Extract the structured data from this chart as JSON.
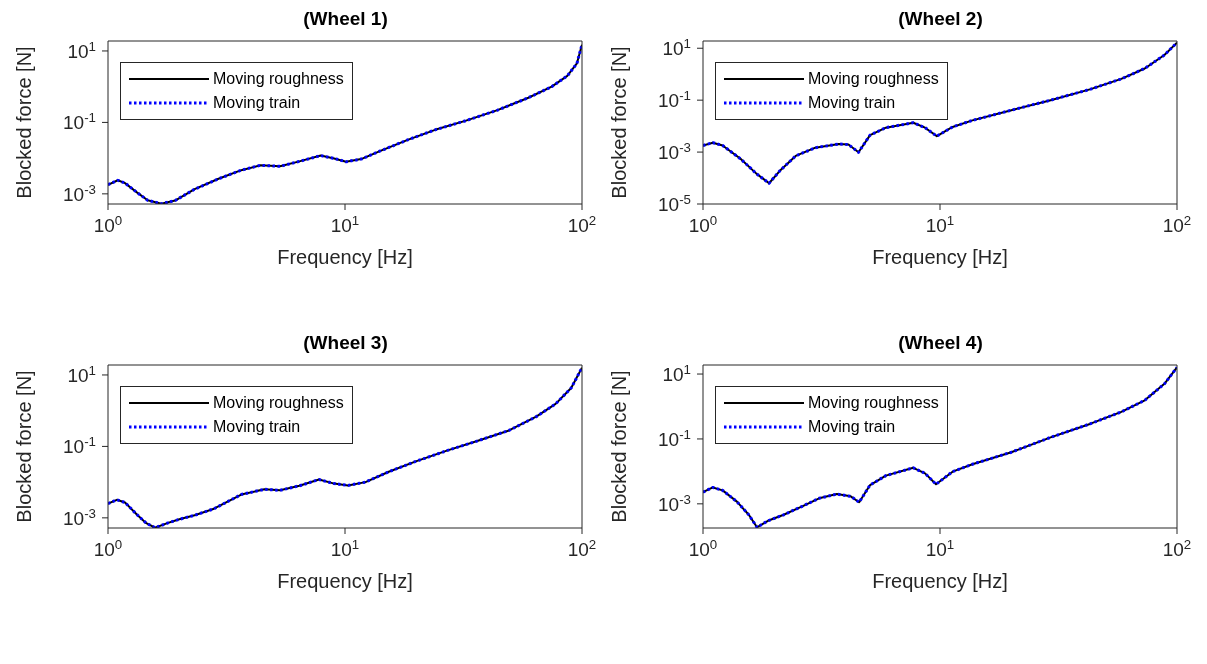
{
  "chart_data": [
    {
      "type": "line",
      "title": "(Wheel 1)",
      "xlabel": "Frequency [Hz]",
      "ylabel": "Blocked force [N]",
      "log": "xy",
      "legend": "top left",
      "grid": false,
      "xlim": [
        1,
        100
      ],
      "ylim": [
        0.00052,
        19
      ],
      "xticks": [
        {
          "value": 1,
          "label": "10$^{0}$"
        },
        {
          "value": 10,
          "label": "10$^{1}$"
        },
        {
          "value": 100,
          "label": "10$^{2}$"
        }
      ],
      "yticks": [
        {
          "value": 0.001,
          "label": "10$^{-3}$"
        },
        {
          "value": 0.1,
          "label": "10$^{-1}$"
        },
        {
          "value": 10,
          "label": "10$^{1}$"
        }
      ],
      "x": [
        1,
        1.1,
        1.18,
        1.32,
        1.47,
        1.68,
        1.92,
        2.32,
        2.91,
        3.65,
        4.4,
        5.32,
        6.42,
        7.9,
        9.0,
        10.1,
        11.7,
        14.2,
        18.5,
        24,
        32.4,
        44,
        59.4,
        74.5,
        86.7,
        95.2,
        100
      ],
      "series": [
        {
          "name": "Moving roughness",
          "color": "#000000",
          "line_style": "solid",
          "values": [
            0.0018,
            0.0024,
            0.002,
            0.00112,
            0.00066,
            0.00053,
            0.00065,
            0.00135,
            0.0026,
            0.0046,
            0.0063,
            0.0059,
            0.0081,
            0.0118,
            0.0098,
            0.0079,
            0.0094,
            0.0162,
            0.033,
            0.062,
            0.112,
            0.22,
            0.49,
            1.0,
            2.0,
            4.5,
            15
          ]
        },
        {
          "name": "Moving train",
          "color": "#0000ff",
          "line_style": "dotted",
          "values": [
            0.0018,
            0.0024,
            0.002,
            0.00112,
            0.00066,
            0.00053,
            0.00065,
            0.00135,
            0.0026,
            0.0046,
            0.0063,
            0.0059,
            0.0081,
            0.0118,
            0.0098,
            0.0079,
            0.0094,
            0.0162,
            0.033,
            0.062,
            0.112,
            0.22,
            0.49,
            1.0,
            2.0,
            4.5,
            15
          ]
        }
      ]
    },
    {
      "type": "line",
      "title": "(Wheel 2)",
      "xlabel": "Frequency [Hz]",
      "ylabel": "Blocked force [N]",
      "log": "xy",
      "legend": "top left",
      "grid": false,
      "xlim": [
        1,
        100
      ],
      "ylim": [
        1e-05,
        19
      ],
      "xticks": [
        {
          "value": 1,
          "label": "10$^{0}$"
        },
        {
          "value": 10,
          "label": "10$^{1}$"
        },
        {
          "value": 100,
          "label": "10$^{2}$"
        }
      ],
      "yticks": [
        {
          "value": 1e-05,
          "label": "10$^{-5}$"
        },
        {
          "value": 0.001,
          "label": "10$^{-3}$"
        },
        {
          "value": 0.1,
          "label": "10$^{-1}$"
        },
        {
          "value": 10,
          "label": "10$^{1}$"
        }
      ],
      "x": [
        1,
        1.1,
        1.21,
        1.44,
        1.68,
        1.9,
        2.11,
        2.46,
        2.98,
        3.74,
        4.11,
        4.53,
        5.07,
        5.91,
        7.71,
        8.65,
        9.7,
        11.3,
        13.7,
        20,
        29.3,
        42.9,
        58.2,
        73.1,
        88.5,
        100
      ],
      "series": [
        {
          "name": "Moving roughness",
          "color": "#000000",
          "line_style": "solid",
          "values": [
            0.0018,
            0.0023,
            0.0018,
            0.00055,
            0.000148,
            6.3e-05,
            0.00019,
            0.00071,
            0.00148,
            0.00204,
            0.00195,
            0.00098,
            0.0045,
            0.0087,
            0.0135,
            0.0087,
            0.0041,
            0.0093,
            0.0166,
            0.041,
            0.1,
            0.26,
            0.66,
            1.66,
            5.5,
            16.5
          ]
        },
        {
          "name": "Moving train",
          "color": "#0000ff",
          "line_style": "dotted",
          "values": [
            0.0018,
            0.0023,
            0.0018,
            0.00055,
            0.000148,
            6.3e-05,
            0.00019,
            0.00071,
            0.00148,
            0.00204,
            0.00195,
            0.00098,
            0.0045,
            0.0087,
            0.0135,
            0.0087,
            0.0041,
            0.0093,
            0.0166,
            0.041,
            0.1,
            0.26,
            0.66,
            1.66,
            5.5,
            16.5
          ]
        }
      ]
    },
    {
      "type": "line",
      "title": "(Wheel 3)",
      "xlabel": "Frequency [Hz]",
      "ylabel": "Blocked force [N]",
      "log": "xy",
      "legend": "top left",
      "grid": false,
      "xlim": [
        1,
        100
      ],
      "ylim": [
        0.00052,
        19
      ],
      "xticks": [
        {
          "value": 1,
          "label": "10$^{0}$"
        },
        {
          "value": 10,
          "label": "10$^{1}$"
        },
        {
          "value": 100,
          "label": "10$^{2}$"
        }
      ],
      "yticks": [
        {
          "value": 0.001,
          "label": "10$^{-3}$"
        },
        {
          "value": 0.1,
          "label": "10$^{-1}$"
        },
        {
          "value": 10,
          "label": "10$^{1}$"
        }
      ],
      "x": [
        1,
        1.09,
        1.18,
        1.32,
        1.45,
        1.58,
        1.78,
        2.0,
        2.32,
        2.8,
        3.65,
        4.57,
        5.32,
        6.42,
        7.77,
        9.0,
        10.3,
        12.2,
        15.3,
        19.9,
        26.9,
        36.4,
        49.2,
        64.1,
        77.4,
        90,
        100
      ],
      "series": [
        {
          "name": "Moving roughness",
          "color": "#000000",
          "line_style": "solid",
          "values": [
            0.0025,
            0.0032,
            0.0027,
            0.00126,
            0.00071,
            0.00053,
            0.00071,
            0.00091,
            0.00118,
            0.0018,
            0.0045,
            0.0063,
            0.0059,
            0.0079,
            0.0118,
            0.0091,
            0.0081,
            0.01,
            0.0195,
            0.038,
            0.076,
            0.144,
            0.28,
            0.68,
            1.55,
            4.3,
            16
          ]
        },
        {
          "name": "Moving train",
          "color": "#0000ff",
          "line_style": "dotted",
          "values": [
            0.0025,
            0.0032,
            0.0027,
            0.00126,
            0.00071,
            0.00053,
            0.00071,
            0.00091,
            0.00118,
            0.0018,
            0.0045,
            0.0063,
            0.0059,
            0.0079,
            0.0118,
            0.0091,
            0.0081,
            0.01,
            0.0195,
            0.038,
            0.076,
            0.144,
            0.28,
            0.68,
            1.55,
            4.3,
            16
          ]
        }
      ]
    },
    {
      "type": "line",
      "title": "(Wheel 4)",
      "xlabel": "Frequency [Hz]",
      "ylabel": "Blocked force [N]",
      "log": "xy",
      "legend": "top left",
      "grid": false,
      "xlim": [
        1,
        100
      ],
      "ylim": [
        0.00018,
        19
      ],
      "xticks": [
        {
          "value": 1,
          "label": "10$^{0}$"
        },
        {
          "value": 10,
          "label": "10$^{1}$"
        },
        {
          "value": 100,
          "label": "10$^{2}$"
        }
      ],
      "yticks": [
        {
          "value": 0.001,
          "label": "10$^{-3}$"
        },
        {
          "value": 0.1,
          "label": "10$^{-1}$"
        },
        {
          "value": 10,
          "label": "10$^{1}$"
        }
      ],
      "x": [
        1,
        1.1,
        1.21,
        1.39,
        1.56,
        1.69,
        1.88,
        2.19,
        2.65,
        3.09,
        3.67,
        4.2,
        4.56,
        5.07,
        5.91,
        7.71,
        8.65,
        9.62,
        11.3,
        13.7,
        20,
        29.3,
        42.9,
        58.2,
        73.1,
        88.5,
        100
      ],
      "series": [
        {
          "name": "Moving roughness",
          "color": "#000000",
          "line_style": "solid",
          "values": [
            0.0023,
            0.0032,
            0.0026,
            0.00117,
            0.00046,
            0.00019,
            0.0003,
            0.00046,
            0.00087,
            0.00148,
            0.002,
            0.0017,
            0.00112,
            0.0038,
            0.0074,
            0.0129,
            0.0087,
            0.004,
            0.0098,
            0.0166,
            0.039,
            0.112,
            0.29,
            0.68,
            1.55,
            5,
            16
          ]
        },
        {
          "name": "Moving train",
          "color": "#0000ff",
          "line_style": "dotted",
          "values": [
            0.0023,
            0.0032,
            0.0026,
            0.00117,
            0.00046,
            0.00019,
            0.0003,
            0.00046,
            0.00087,
            0.00148,
            0.002,
            0.0017,
            0.00112,
            0.0038,
            0.0074,
            0.0129,
            0.0087,
            0.004,
            0.0098,
            0.0166,
            0.039,
            0.112,
            0.29,
            0.68,
            1.55,
            5,
            16
          ]
        }
      ]
    }
  ]
}
